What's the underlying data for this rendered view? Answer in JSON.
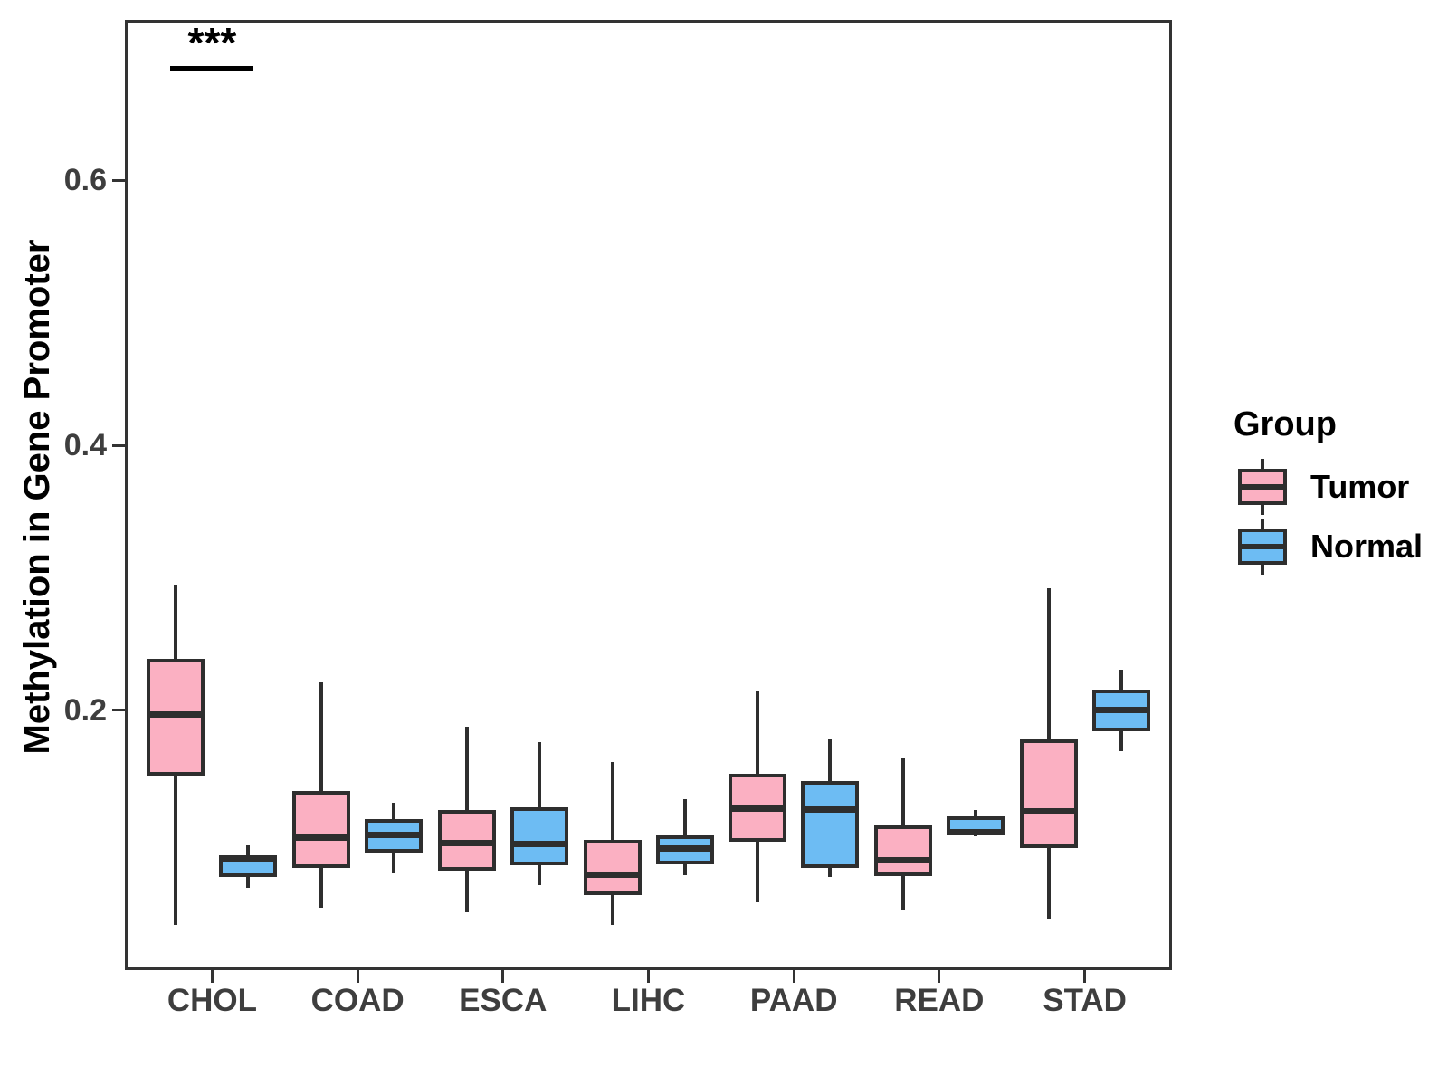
{
  "chart_data": {
    "type": "boxplot",
    "title": "",
    "xlabel": "",
    "ylabel": "Methylation in Gene Promoter",
    "categories": [
      "CHOL",
      "COAD",
      "ESCA",
      "LIHC",
      "PAAD",
      "READ",
      "STAD"
    ],
    "yticks": {
      "values": [
        0.2,
        0.4,
        0.6
      ],
      "labels": [
        "0.2",
        "0.4",
        "0.6"
      ]
    },
    "ylim": [
      0.004,
      0.721
    ],
    "grid": "off",
    "legend": {
      "title": "Group",
      "position": "right",
      "entries": [
        {
          "label": "Tumor",
          "color": "#FBB0C2"
        },
        {
          "label": "Normal",
          "color": "#6DBCF3"
        }
      ]
    },
    "significance": {
      "category": "CHOL",
      "label": "***",
      "line_value": 0.686
    },
    "series": [
      {
        "name": "Tumor",
        "color": "#FBB0C2",
        "boxes": [
          {
            "category": "CHOL",
            "whisker_low": 0.038,
            "q1": 0.151,
            "median": 0.197,
            "q3": 0.239,
            "whisker_high": 0.295
          },
          {
            "category": "COAD",
            "whisker_low": 0.051,
            "q1": 0.081,
            "median": 0.104,
            "q3": 0.139,
            "whisker_high": 0.221
          },
          {
            "category": "ESCA",
            "whisker_low": 0.048,
            "q1": 0.079,
            "median": 0.1,
            "q3": 0.125,
            "whisker_high": 0.188
          },
          {
            "category": "LIHC",
            "whisker_low": 0.038,
            "q1": 0.061,
            "median": 0.076,
            "q3": 0.102,
            "whisker_high": 0.161
          },
          {
            "category": "PAAD",
            "whisker_low": 0.055,
            "q1": 0.101,
            "median": 0.126,
            "q3": 0.152,
            "whisker_high": 0.214
          },
          {
            "category": "READ",
            "whisker_low": 0.05,
            "q1": 0.075,
            "median": 0.087,
            "q3": 0.113,
            "whisker_high": 0.164
          },
          {
            "category": "STAD",
            "whisker_low": 0.042,
            "q1": 0.096,
            "median": 0.124,
            "q3": 0.178,
            "whisker_high": 0.292
          }
        ]
      },
      {
        "name": "Normal",
        "color": "#6DBCF3",
        "boxes": [
          {
            "category": "CHOL",
            "whisker_low": 0.066,
            "q1": 0.074,
            "median": 0.088,
            "q3": 0.091,
            "whisker_high": 0.098
          },
          {
            "category": "COAD",
            "whisker_low": 0.077,
            "q1": 0.093,
            "median": 0.106,
            "q3": 0.118,
            "whisker_high": 0.13
          },
          {
            "category": "ESCA",
            "whisker_low": 0.068,
            "q1": 0.083,
            "median": 0.099,
            "q3": 0.127,
            "whisker_high": 0.176
          },
          {
            "category": "LIHC",
            "whisker_low": 0.076,
            "q1": 0.084,
            "median": 0.096,
            "q3": 0.106,
            "whisker_high": 0.133
          },
          {
            "category": "PAAD",
            "whisker_low": 0.074,
            "q1": 0.081,
            "median": 0.125,
            "q3": 0.147,
            "whisker_high": 0.178
          },
          {
            "category": "READ",
            "whisker_low": 0.105,
            "q1": 0.106,
            "median": 0.108,
            "q3": 0.12,
            "whisker_high": 0.125
          },
          {
            "category": "STAD",
            "whisker_low": 0.169,
            "q1": 0.184,
            "median": 0.2,
            "q3": 0.216,
            "whisker_high": 0.231
          }
        ]
      }
    ]
  }
}
